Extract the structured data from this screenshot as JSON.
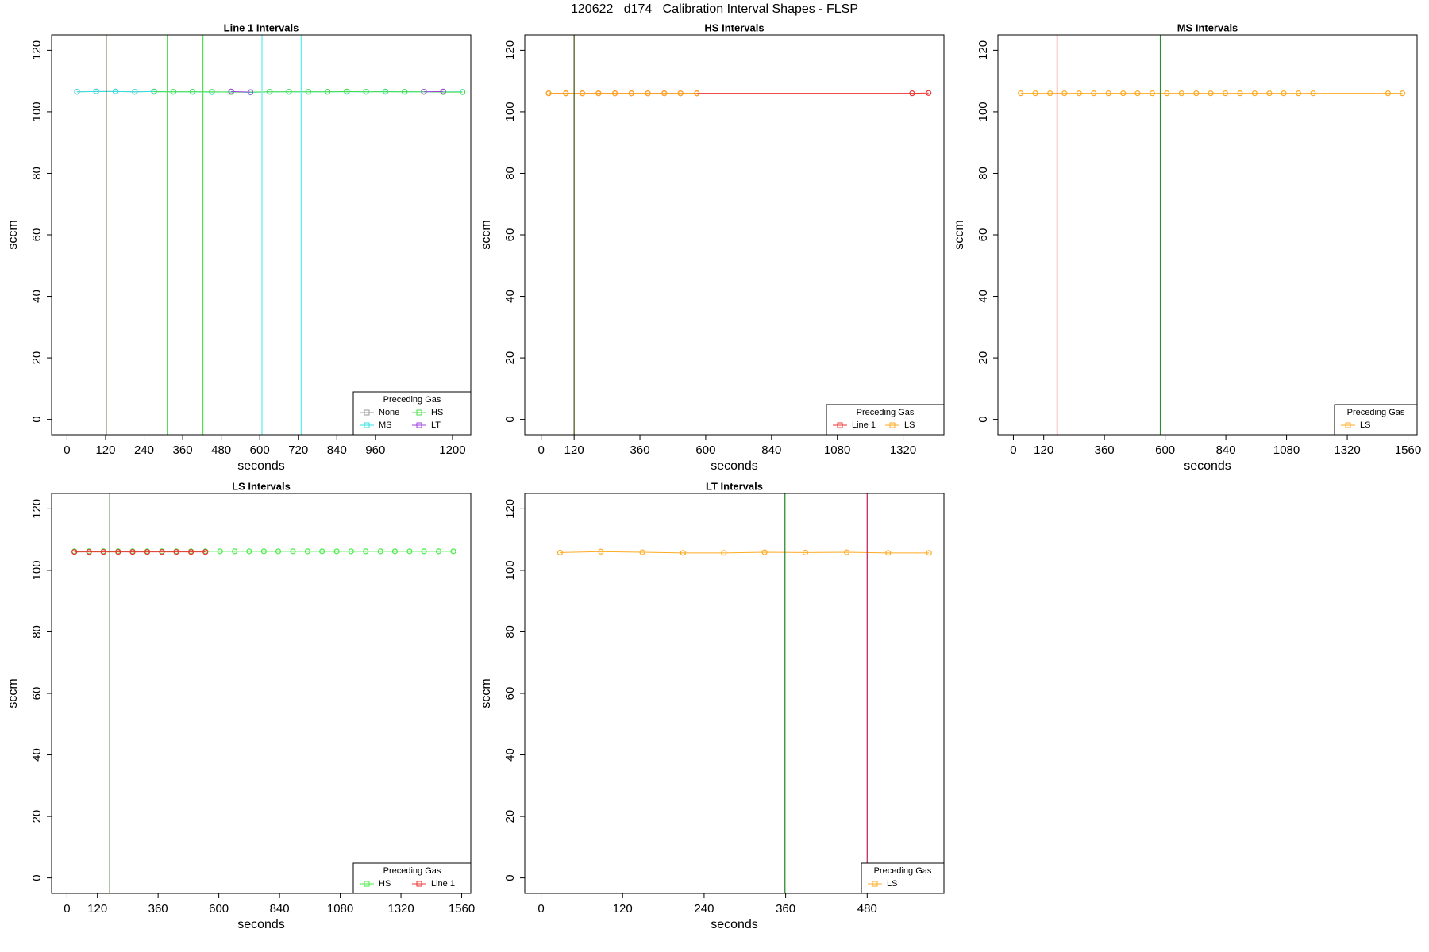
{
  "title": "120622   d174   Calibration Interval Shapes - FLSP",
  "chart_data": [
    {
      "type": "line",
      "title": "Line 1 Intervals",
      "xlabel": "seconds",
      "ylabel": "sccm",
      "x": [
        31,
        91,
        151,
        211,
        271,
        331,
        391,
        451,
        511,
        571,
        631,
        691,
        751,
        811,
        871,
        931,
        991,
        1051,
        1111,
        1171,
        1231
      ],
      "series": [
        {
          "name": "None",
          "color": "#999999",
          "values": [
            106.5,
            106.6,
            106.6,
            106.5,
            106.6,
            null,
            null,
            null,
            null,
            null,
            null,
            null,
            null,
            null,
            null,
            null,
            null,
            null,
            null,
            null,
            null
          ]
        },
        {
          "name": "MS",
          "color": "#33e0e0",
          "values": [
            106.5,
            106.6,
            106.6,
            106.5,
            106.6,
            106.5,
            106.5,
            106.4,
            106.5,
            106.3,
            106.5,
            106.5,
            106.5,
            106.5,
            106.5,
            106.5,
            106.6,
            106.5,
            106.5,
            106.5,
            106.5
          ]
        },
        {
          "name": "HS",
          "color": "#44dd44",
          "values": [
            null,
            null,
            null,
            null,
            106.5,
            106.5,
            106.5,
            106.5,
            106.4,
            106.4,
            106.5,
            106.5,
            106.5,
            106.5,
            106.6,
            106.5,
            106.5,
            106.5,
            106.5,
            106.4,
            106.4
          ]
        },
        {
          "name": "LT",
          "color": "#a040e0",
          "values": [
            null,
            null,
            null,
            null,
            null,
            null,
            null,
            null,
            106.6,
            106.4,
            null,
            null,
            null,
            null,
            null,
            null,
            null,
            null,
            106.5,
            106.6,
            null
          ]
        }
      ],
      "vlines": [
        {
          "x": 122,
          "color": "#4f5a1e"
        },
        {
          "x": 312,
          "color": "#55dd55"
        },
        {
          "x": 423,
          "color": "#55dd55"
        },
        {
          "x": 607,
          "color": "#66eeee"
        },
        {
          "x": 729,
          "color": "#66eeee"
        }
      ],
      "xlim": [
        -48,
        1257
      ],
      "ylim": [
        -5,
        125
      ],
      "xticks": [
        0,
        120,
        240,
        360,
        480,
        600,
        720,
        840,
        960,
        1200
      ],
      "yticks": [
        0,
        20,
        40,
        60,
        80,
        100,
        120
      ],
      "legend": "bottomright",
      "legend_title": "Preceding Gas"
    },
    {
      "type": "line",
      "title": "HS Intervals",
      "xlabel": "seconds",
      "ylabel": "sccm",
      "x": [
        27,
        90,
        150,
        209,
        269,
        329,
        389,
        449,
        508,
        568,
        1353,
        1413
      ],
      "series": [
        {
          "name": "Line 1",
          "color": "#ee3333",
          "values": [
            106,
            106,
            106,
            106,
            106,
            106,
            106,
            106,
            106,
            106,
            106,
            106.1
          ]
        },
        {
          "name": "LS",
          "color": "#ffaa22",
          "values": [
            106,
            106,
            106,
            106,
            106,
            106,
            106,
            106,
            106,
            106,
            null,
            null
          ]
        }
      ],
      "vlines": [
        {
          "x": 120,
          "color": "#4f5a1e"
        }
      ],
      "xlim": [
        -60,
        1469
      ],
      "ylim": [
        -5,
        125
      ],
      "xticks": [
        0,
        120,
        360,
        600,
        840,
        1080,
        1320
      ],
      "yticks": [
        0,
        20,
        40,
        60,
        80,
        100,
        120
      ],
      "legend": "bottomright",
      "legend_title": "Preceding Gas"
    },
    {
      "type": "line",
      "title": "MS Intervals",
      "xlabel": "seconds",
      "ylabel": "sccm",
      "x": [
        29,
        87,
        145,
        202,
        260,
        318,
        376,
        434,
        491,
        549,
        607,
        665,
        723,
        780,
        838,
        896,
        954,
        1012,
        1069,
        1127,
        1185,
        1481,
        1538
      ],
      "series": [
        {
          "name": "LS",
          "color": "#ffaa22",
          "values": [
            106,
            106,
            106,
            106,
            106,
            106,
            106,
            106,
            106,
            106,
            106,
            106,
            106,
            106,
            106,
            106,
            106,
            106,
            106,
            106,
            106,
            106,
            106
          ]
        }
      ],
      "vlines": [
        {
          "x": 173,
          "color": "#ee3333"
        },
        {
          "x": 581,
          "color": "#2e8b2e"
        }
      ],
      "xlim": [
        -61,
        1596
      ],
      "ylim": [
        -5,
        125
      ],
      "xticks": [
        0,
        120,
        360,
        600,
        840,
        1080,
        1320,
        1560
      ],
      "yticks": [
        0,
        20,
        40,
        60,
        80,
        100,
        120
      ],
      "legend": "bottomright",
      "legend_title": "Preceding Gas"
    },
    {
      "type": "line",
      "title": "LS Intervals",
      "xlabel": "seconds",
      "ylabel": "sccm",
      "x": [
        29,
        87,
        144,
        202,
        259,
        317,
        375,
        432,
        490,
        547,
        605,
        663,
        720,
        778,
        835,
        893,
        951,
        1008,
        1066,
        1123,
        1181,
        1239,
        1296,
        1354,
        1411,
        1469,
        1527
      ],
      "series": [
        {
          "name": "HS",
          "color": "#44ee44",
          "values": [
            106.2,
            106.2,
            106.2,
            106.2,
            106.2,
            106.2,
            106.2,
            106.2,
            106.2,
            106.2,
            106.2,
            106.2,
            106.2,
            106.2,
            106.2,
            106.2,
            106.2,
            106.2,
            106.2,
            106.2,
            106.2,
            106.2,
            106.2,
            106.2,
            106.2,
            106.2,
            106.2
          ]
        },
        {
          "name": "Line 1",
          "color": "#ee3333",
          "values": [
            106,
            106,
            106,
            106,
            106,
            106,
            106,
            106,
            106,
            106,
            null,
            null,
            null,
            null,
            null,
            null,
            null,
            null,
            null,
            null,
            null,
            null,
            null,
            null,
            null,
            null,
            null
          ]
        }
      ],
      "vlines": [
        {
          "x": 169,
          "color": "#2f5a14"
        }
      ],
      "xlim": [
        -61,
        1596
      ],
      "ylim": [
        -5,
        125
      ],
      "xticks": [
        0,
        120,
        360,
        600,
        840,
        1080,
        1320,
        1560
      ],
      "yticks": [
        0,
        20,
        40,
        60,
        80,
        100,
        120
      ],
      "legend": "bottomright",
      "legend_title": "Preceding Gas"
    },
    {
      "type": "line",
      "title": "LT Intervals",
      "xlabel": "seconds",
      "ylabel": "sccm",
      "x": [
        28,
        88,
        149,
        209,
        269,
        329,
        389,
        450,
        511,
        571
      ],
      "series": [
        {
          "name": "LS",
          "color": "#ffaa22",
          "values": [
            105.8,
            106.1,
            105.9,
            105.7,
            105.7,
            105.9,
            105.8,
            105.9,
            105.7,
            105.7
          ]
        }
      ],
      "vlines": [
        {
          "x": 359,
          "color": "#2e8b2e"
        },
        {
          "x": 480,
          "color": "#c03060"
        }
      ],
      "xlim": [
        -24,
        593
      ],
      "ylim": [
        -5,
        125
      ],
      "xticks": [
        0,
        120,
        240,
        360,
        480
      ],
      "yticks": [
        0,
        20,
        40,
        60,
        80,
        100,
        120
      ],
      "legend": "bottomright",
      "legend_title": "Preceding Gas"
    }
  ]
}
